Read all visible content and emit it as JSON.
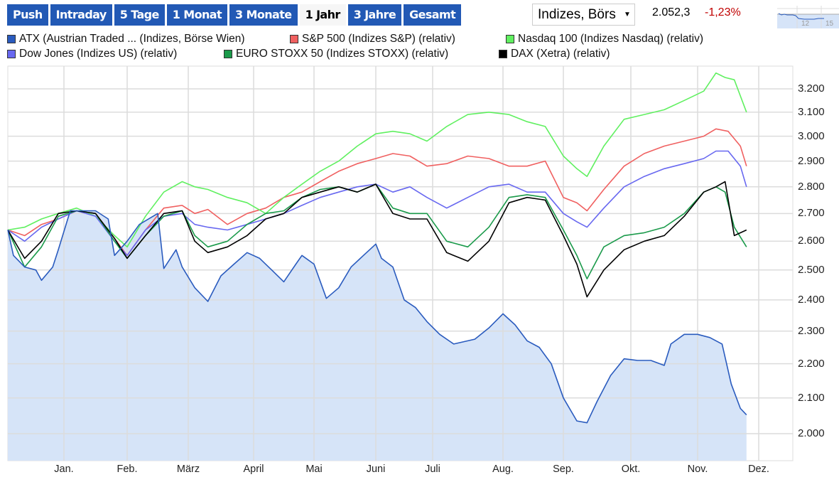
{
  "toolbar": {
    "tabs": [
      {
        "label": "Push",
        "active": false
      },
      {
        "label": "Intraday",
        "active": false
      },
      {
        "label": "5 Tage",
        "active": false
      },
      {
        "label": "1 Monat",
        "active": false
      },
      {
        "label": "3 Monate",
        "active": false
      },
      {
        "label": "1 Jahr",
        "active": true
      },
      {
        "label": "3 Jahre",
        "active": false
      },
      {
        "label": "Gesamt",
        "active": false
      }
    ],
    "exchange_select": "Indizes, Börs",
    "price": "2.052,3",
    "change": "-1,23%",
    "mini_chart_labels": [
      "12",
      "15"
    ]
  },
  "colors": {
    "tab_bg": "#2259b5",
    "change_negative": "#c00000",
    "grid": "#dddddd",
    "area_fill": "#d6e4f8"
  },
  "chart_data": {
    "type": "line",
    "title": "",
    "xlabel": "",
    "ylabel": "",
    "y_scale": "log",
    "ylim": [
      1928,
      3300
    ],
    "grid": true,
    "legend_position": "top",
    "x_tick_labels": [
      "Jan.",
      "Feb.",
      "März",
      "April",
      "Mai",
      "Juni",
      "Juli",
      "Aug.",
      "Sep.",
      "Okt.",
      "Nov.",
      "Dez."
    ],
    "y_tick_labels": [
      "3.200",
      "3.100",
      "3.000",
      "2.900",
      "2.800",
      "2.700",
      "2.600",
      "2.500",
      "2.400",
      "2.300",
      "2.200",
      "2.100",
      "2.000"
    ],
    "y_ticks": [
      3200,
      3100,
      3000,
      2900,
      2800,
      2700,
      2600,
      2500,
      2400,
      2300,
      2200,
      2100,
      2000
    ],
    "x_positions_note": "approx. month index 0..12.6 (start late Dec to mid Dec)",
    "series": [
      {
        "name": "ATX (Austrian Traded ... (Indizes, Börse Wien)",
        "color": "#2a5bbe",
        "area": true,
        "x": [
          0,
          0.1,
          0.3,
          0.5,
          0.6,
          0.8,
          0.9,
          1.1,
          1.3,
          1.5,
          1.7,
          1.8,
          2.0,
          2.2,
          2.5,
          2.6,
          2.8,
          2.9,
          3.1,
          3.3,
          3.5,
          3.7,
          3.9,
          4.1,
          4.3,
          4.5,
          4.7,
          4.8,
          5.0,
          5.2,
          5.4,
          5.6,
          5.8,
          6.0,
          6.1,
          6.3,
          6.5,
          6.7,
          6.9,
          7.1,
          7.3,
          7.6,
          7.8,
          8.0,
          8.2,
          8.4,
          8.6,
          8.8,
          9.0,
          9.2,
          9.35,
          9.5,
          9.7,
          9.9,
          10.1,
          10.3,
          10.5,
          10.6,
          10.8,
          11.0,
          11.2,
          11.4,
          11.55,
          11.7,
          11.8
        ],
        "values": [
          2640,
          2550,
          2510,
          2500,
          2465,
          2510,
          2570,
          2710,
          2710,
          2710,
          2680,
          2550,
          2600,
          2660,
          2700,
          2505,
          2570,
          2510,
          2440,
          2395,
          2480,
          2520,
          2560,
          2540,
          2500,
          2460,
          2520,
          2550,
          2520,
          2405,
          2440,
          2510,
          2550,
          2590,
          2540,
          2510,
          2400,
          2375,
          2330,
          2290,
          2260,
          2275,
          2310,
          2355,
          2320,
          2270,
          2250,
          2200,
          2100,
          2035,
          2030,
          2090,
          2165,
          2215,
          2210,
          2210,
          2195,
          2260,
          2290,
          2290,
          2280,
          2260,
          2140,
          2070,
          2052
        ]
      },
      {
        "name": "S&P 500 (Indizes S&P) (relativ)",
        "color": "#f06060",
        "area": false,
        "x": [
          0,
          0.3,
          0.6,
          0.9,
          1.2,
          1.5,
          1.8,
          2.0,
          2.3,
          2.6,
          2.9,
          3.1,
          3.3,
          3.6,
          3.9,
          4.2,
          4.5,
          4.8,
          5.1,
          5.4,
          5.7,
          6.0,
          6.3,
          6.6,
          6.9,
          7.2,
          7.5,
          7.8,
          8.1,
          8.4,
          8.7,
          9.0,
          9.2,
          9.35,
          9.6,
          9.9,
          10.2,
          10.5,
          10.8,
          11.1,
          11.3,
          11.5,
          11.7,
          11.8
        ],
        "values": [
          2640,
          2620,
          2660,
          2680,
          2710,
          2700,
          2610,
          2550,
          2640,
          2720,
          2730,
          2700,
          2715,
          2660,
          2700,
          2720,
          2760,
          2780,
          2820,
          2860,
          2890,
          2910,
          2930,
          2920,
          2880,
          2890,
          2920,
          2910,
          2880,
          2880,
          2900,
          2760,
          2740,
          2710,
          2790,
          2880,
          2930,
          2960,
          2980,
          3000,
          3030,
          3020,
          2960,
          2880
        ]
      },
      {
        "name": "Nasdaq 100 (Indizes Nasdaq) (relativ)",
        "color": "#60f060",
        "area": false,
        "x": [
          0,
          0.3,
          0.6,
          0.9,
          1.2,
          1.5,
          1.8,
          2.0,
          2.3,
          2.6,
          2.9,
          3.1,
          3.3,
          3.6,
          3.9,
          4.2,
          4.5,
          4.8,
          5.1,
          5.4,
          5.7,
          6.0,
          6.3,
          6.6,
          6.9,
          7.2,
          7.5,
          7.8,
          8.1,
          8.4,
          8.7,
          9.0,
          9.2,
          9.35,
          9.6,
          9.9,
          10.2,
          10.5,
          10.8,
          11.1,
          11.3,
          11.45,
          11.6,
          11.8
        ],
        "values": [
          2640,
          2650,
          2680,
          2700,
          2720,
          2690,
          2620,
          2580,
          2690,
          2780,
          2820,
          2800,
          2790,
          2760,
          2740,
          2700,
          2760,
          2810,
          2860,
          2900,
          2960,
          3010,
          3020,
          3010,
          2980,
          3040,
          3090,
          3100,
          3090,
          3060,
          3040,
          2920,
          2870,
          2840,
          2960,
          3070,
          3090,
          3110,
          3150,
          3190,
          3270,
          3250,
          3240,
          3100
        ]
      },
      {
        "name": "Dow Jones (Indizes US) (relativ)",
        "color": "#6868f0",
        "area": false,
        "x": [
          0,
          0.3,
          0.6,
          0.9,
          1.2,
          1.5,
          1.8,
          2.0,
          2.3,
          2.6,
          2.9,
          3.1,
          3.3,
          3.6,
          3.9,
          4.2,
          4.5,
          4.8,
          5.1,
          5.4,
          5.7,
          6.0,
          6.3,
          6.6,
          6.9,
          7.2,
          7.5,
          7.8,
          8.1,
          8.4,
          8.7,
          9.0,
          9.2,
          9.35,
          9.6,
          9.9,
          10.2,
          10.5,
          10.8,
          11.1,
          11.3,
          11.5,
          11.7,
          11.8
        ],
        "values": [
          2640,
          2600,
          2650,
          2680,
          2710,
          2690,
          2600,
          2550,
          2640,
          2690,
          2700,
          2660,
          2650,
          2640,
          2660,
          2680,
          2700,
          2730,
          2760,
          2780,
          2800,
          2810,
          2780,
          2800,
          2760,
          2720,
          2760,
          2800,
          2810,
          2780,
          2780,
          2700,
          2670,
          2650,
          2720,
          2800,
          2840,
          2870,
          2890,
          2910,
          2940,
          2940,
          2880,
          2800
        ]
      },
      {
        "name": "EURO STOXX 50 (Indizes STOXX) (relativ)",
        "color": "#1a9a4a",
        "area": false,
        "x": [
          0,
          0.3,
          0.6,
          0.9,
          1.2,
          1.5,
          1.8,
          2.0,
          2.3,
          2.6,
          2.9,
          3.1,
          3.3,
          3.6,
          3.9,
          4.2,
          4.5,
          4.8,
          5.1,
          5.4,
          5.7,
          6.0,
          6.3,
          6.6,
          6.9,
          7.2,
          7.5,
          7.8,
          8.1,
          8.4,
          8.7,
          9.0,
          9.2,
          9.35,
          9.6,
          9.9,
          10.2,
          10.5,
          10.8,
          11.1,
          11.3,
          11.45,
          11.6,
          11.8
        ],
        "values": [
          2640,
          2510,
          2580,
          2690,
          2710,
          2700,
          2600,
          2540,
          2620,
          2690,
          2710,
          2620,
          2580,
          2600,
          2660,
          2700,
          2710,
          2760,
          2790,
          2800,
          2780,
          2810,
          2720,
          2700,
          2700,
          2600,
          2580,
          2650,
          2760,
          2770,
          2760,
          2640,
          2550,
          2470,
          2580,
          2620,
          2630,
          2650,
          2700,
          2780,
          2800,
          2780,
          2650,
          2580
        ]
      },
      {
        "name": "DAX (Xetra) (relativ)",
        "color": "#000000",
        "area": false,
        "x": [
          0,
          0.3,
          0.6,
          0.9,
          1.2,
          1.5,
          1.8,
          2.0,
          2.3,
          2.6,
          2.9,
          3.1,
          3.3,
          3.6,
          3.9,
          4.2,
          4.5,
          4.8,
          5.1,
          5.4,
          5.7,
          6.0,
          6.3,
          6.6,
          6.9,
          7.2,
          7.5,
          7.8,
          8.1,
          8.4,
          8.7,
          9.0,
          9.2,
          9.35,
          9.6,
          9.9,
          10.2,
          10.5,
          10.8,
          11.1,
          11.3,
          11.45,
          11.6,
          11.8
        ],
        "values": [
          2640,
          2540,
          2600,
          2700,
          2710,
          2700,
          2610,
          2540,
          2620,
          2700,
          2710,
          2600,
          2560,
          2580,
          2620,
          2680,
          2700,
          2760,
          2780,
          2800,
          2780,
          2810,
          2700,
          2680,
          2680,
          2560,
          2530,
          2600,
          2740,
          2760,
          2750,
          2620,
          2520,
          2410,
          2500,
          2570,
          2600,
          2620,
          2690,
          2780,
          2800,
          2820,
          2620,
          2640
        ]
      }
    ]
  },
  "legend": {
    "items": [
      {
        "label": "ATX (Austrian Traded ... (Indizes, Börse Wien)",
        "color": "#2a5bbe"
      },
      {
        "label": "S&P 500 (Indizes S&P) (relativ)",
        "color": "#f06060"
      },
      {
        "label": "Nasdaq 100 (Indizes Nasdaq) (relativ)",
        "color": "#60f060"
      },
      {
        "label": "Dow Jones (Indizes US) (relativ)",
        "color": "#6868f0"
      },
      {
        "label": "EURO STOXX 50 (Indizes STOXX) (relativ)",
        "color": "#1a9a4a"
      },
      {
        "label": "DAX (Xetra) (relativ)",
        "color": "#000000"
      }
    ]
  }
}
